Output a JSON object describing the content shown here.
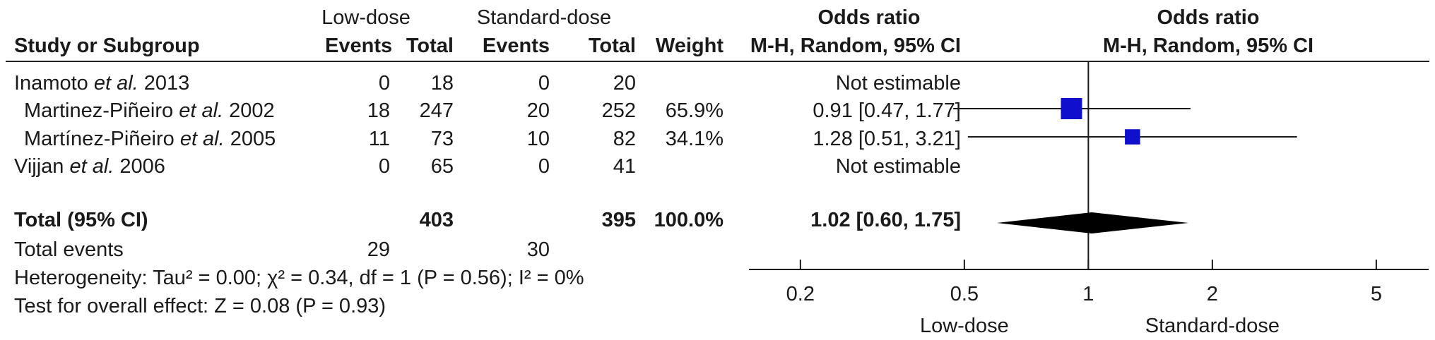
{
  "header": {
    "group1": "Low-dose",
    "group2": "Standard-dose",
    "study_col": "Study or Subgroup",
    "events": "Events",
    "total": "Total",
    "weight": "Weight",
    "or_title": "Odds  ratio",
    "or_method": "M-H, Random, 95% CI",
    "plot_title": "Odds  ratio",
    "plot_method": "M-H, Random, 95% CI"
  },
  "studies": [
    {
      "name": "Inamoto",
      "etal": "et al.",
      "year": "2013",
      "e1": "0",
      "t1": "18",
      "e2": "0",
      "t2": "20",
      "weight": "",
      "ci": "Not estimable"
    },
    {
      "name": "Martinez-Piñeiro",
      "etal": "et al.",
      "year": "2002",
      "e1": "18",
      "t1": "247",
      "e2": "20",
      "t2": "252",
      "weight": "65.9%",
      "ci": "0.91 [0.47, 1.77]"
    },
    {
      "name": "Martínez-Piñeiro",
      "etal": "et al.",
      "year": "2005",
      "e1": "11",
      "t1": "73",
      "e2": "10",
      "t2": "82",
      "weight": "34.1%",
      "ci": "1.28 [0.51, 3.21]"
    },
    {
      "name": "Vijjan",
      "etal": "et al.",
      "year": "2006",
      "e1": "0",
      "t1": "65",
      "e2": "0",
      "t2": "41",
      "weight": "",
      "ci": "Not estimable"
    }
  ],
  "total": {
    "label": "Total (95% CI)",
    "t1": "403",
    "t2": "395",
    "weight": "100.0%",
    "ci": "1.02 [0.60, 1.75]"
  },
  "total_events": {
    "label": "Total events",
    "e1": "29",
    "e2": "30"
  },
  "heterogeneity": "Heterogeneity: Tau² = 0.00;   χ² = 0.34, df = 1 (P = 0.56); I² = 0%",
  "overall_effect": "Test for overall effect: Z = 0.08 (P = 0.93)",
  "axis": {
    "left_label": "Low-dose",
    "right_label": "Standard-dose"
  },
  "chart_data": {
    "type": "forest",
    "x_scale": "log",
    "xlim": [
      0.15,
      6.7
    ],
    "ticks": [
      0.2,
      0.5,
      1,
      2,
      5
    ],
    "tick_labels": [
      "0.2",
      "0.5",
      "1",
      "2",
      "5"
    ],
    "null_line": 1,
    "marker_color": "#1010cc",
    "studies": [
      {
        "label": "Martinez-Piñeiro et al. 2002",
        "or": 0.91,
        "lo": 0.47,
        "hi": 1.77,
        "weight": 65.9
      },
      {
        "label": "Martínez-Piñeiro et al. 2005",
        "or": 1.28,
        "lo": 0.51,
        "hi": 3.21,
        "weight": 34.1
      }
    ],
    "pooled": {
      "or": 1.02,
      "lo": 0.6,
      "hi": 1.75
    }
  }
}
